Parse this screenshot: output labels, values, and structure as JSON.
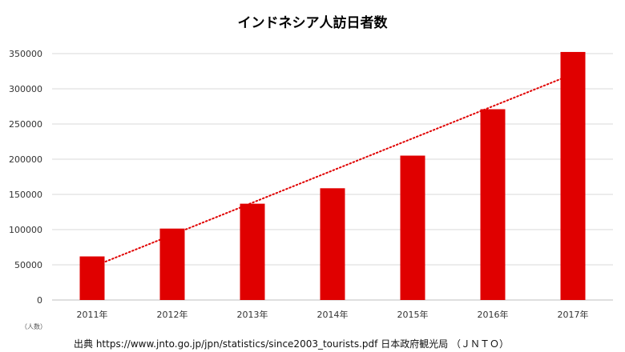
{
  "chart_data": {
    "type": "bar",
    "title": "インドネシア人訪日者数",
    "categories": [
      "2011年",
      "2012年",
      "2013年",
      "2014年",
      "2015年",
      "2016年",
      "2017年"
    ],
    "series": [
      {
        "values": [
          61911,
          101460,
          136797,
          158739,
          205083,
          271014,
          352330
        ]
      }
    ],
    "ylim": [
      0,
      350000
    ],
    "yticks": [
      "0",
      "50000",
      "100000",
      "150000",
      "200000",
      "250000",
      "300000",
      "350000"
    ],
    "ylabel": "（人数）",
    "xlabel": "",
    "trendline": {
      "type": "linear",
      "style": "dotted"
    },
    "grid": true,
    "legend": "none",
    "bar_color": "#e00000",
    "trend_color": "#e00000"
  },
  "source_note": "出典 https://www.jnto.go.jp/jpn/statistics/since2003_tourists.pdf  日本政府観光局 （ＪＮＴＯ）"
}
